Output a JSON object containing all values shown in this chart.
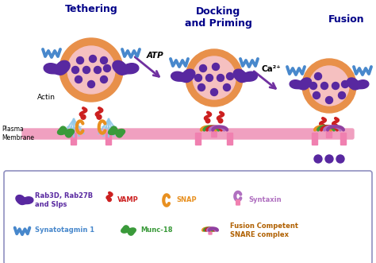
{
  "bg_color": "#ffffff",
  "step1_title": "Tethering",
  "step2_title": "Docking\nand Priming",
  "step3_title": "Fusion",
  "arrow1_label": "ATP",
  "arrow2_label": "Ca²⁺",
  "label_actin": "Actin",
  "label_membrane": "Plasma\nMembrane",
  "vesicle_outer_color": "#e8904a",
  "vesicle_inner_color": "#f5c0c0",
  "vesicle_dot_color": "#5828a0",
  "membrane_color": "#f0a0c0",
  "membrane_stem_color": "#f080b0",
  "rab_color": "#5828a0",
  "synapto_color": "#4888cc",
  "vamp_color": "#cc2020",
  "snap_color": "#e89020",
  "syntaxin_color": "#b070c0",
  "munc_color": "#3a9a3a",
  "actin_color": "#90c8e8",
  "arrow_color": "#7030a0",
  "title_color": "#000088",
  "legend_border_color": "#9090c0"
}
